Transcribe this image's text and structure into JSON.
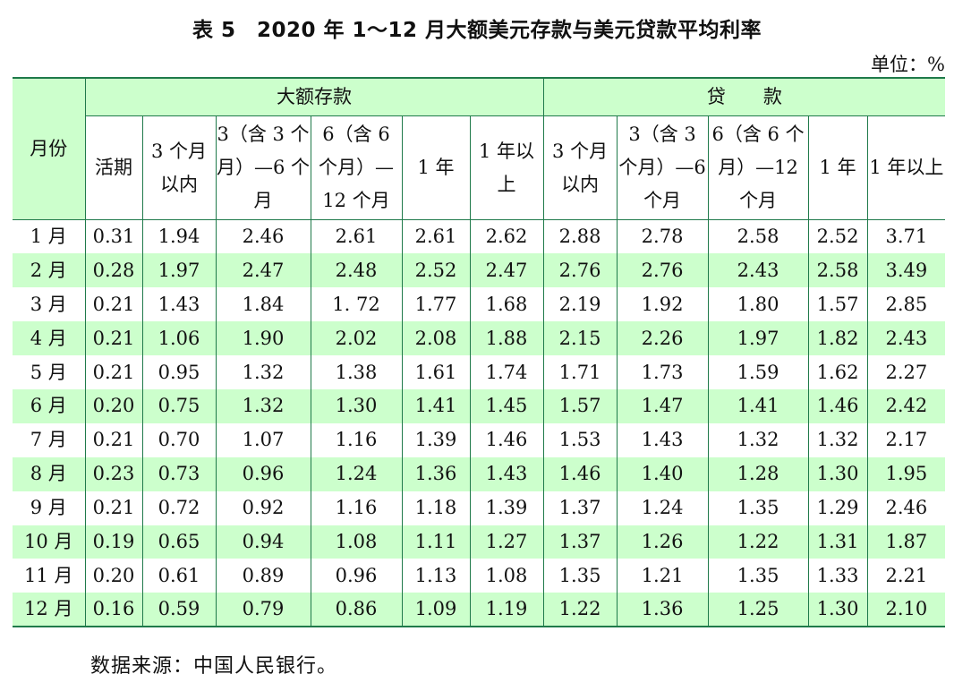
{
  "title": "表 5　2020 年 1～12 月大额美元存款与美元贷款平均利率",
  "unit": "单位：%",
  "header": {
    "month": "月份",
    "deposit_group": "大额存款",
    "loan_group": "贷　　款",
    "deposit_cols": [
      "活期",
      "3 个月以内",
      "3（含 3 个月）—6 个月",
      "6（含 6 个月）—12 个月",
      "1 年",
      "1 年以上"
    ],
    "loan_cols": [
      "3 个月以内",
      "3（含 3 个月）—6 个月",
      "6（含 6 个月）—12 个月",
      "1 年",
      "1 年以上"
    ]
  },
  "rows": [
    {
      "month": "1 月",
      "cells": [
        "0.31",
        "1.94",
        "2.46",
        "2.61",
        "2.61",
        "2.62",
        "2.88",
        "2.78",
        "2.58",
        "2.52",
        "3.71"
      ]
    },
    {
      "month": "2 月",
      "cells": [
        "0.28",
        "1.97",
        "2.47",
        "2.48",
        "2.52",
        "2.47",
        "2.76",
        "2.76",
        "2.43",
        "2.58",
        "3.49"
      ]
    },
    {
      "month": "3 月",
      "cells": [
        "0.21",
        "1.43",
        "1.84",
        "1. 72",
        "1.77",
        "1.68",
        "2.19",
        "1.92",
        "1.80",
        "1.57",
        "2.85"
      ]
    },
    {
      "month": "4 月",
      "cells": [
        "0.21",
        "1.06",
        "1.90",
        "2.02",
        "2.08",
        "1.88",
        "2.15",
        "2.26",
        "1.97",
        "1.82",
        "2.43"
      ]
    },
    {
      "month": "5 月",
      "cells": [
        "0.21",
        "0.95",
        "1.32",
        "1.38",
        "1.61",
        "1.74",
        "1.71",
        "1.73",
        "1.59",
        "1.62",
        "2.27"
      ]
    },
    {
      "month": "6 月",
      "cells": [
        "0.20",
        "0.75",
        "1.32",
        "1.30",
        "1.41",
        "1.45",
        "1.57",
        "1.47",
        "1.41",
        "1.46",
        "2.42"
      ]
    },
    {
      "month": "7 月",
      "cells": [
        "0.21",
        "0.70",
        "1.07",
        "1.16",
        "1.39",
        "1.46",
        "1.53",
        "1.43",
        "1.32",
        "1.32",
        "2.17"
      ]
    },
    {
      "month": "8 月",
      "cells": [
        "0.23",
        "0.73",
        "0.96",
        "1.24",
        "1.36",
        "1.43",
        "1.46",
        "1.40",
        "1.28",
        "1.30",
        "1.95"
      ]
    },
    {
      "month": "9 月",
      "cells": [
        "0.21",
        "0.72",
        "0.92",
        "1.16",
        "1.18",
        "1.39",
        "1.37",
        "1.24",
        "1.35",
        "1.29",
        "2.46"
      ]
    },
    {
      "month": "10 月",
      "cells": [
        "0.19",
        "0.65",
        "0.94",
        "1.08",
        "1.11",
        "1.27",
        "1.37",
        "1.26",
        "1.22",
        "1.31",
        "1.87"
      ]
    },
    {
      "month": "11 月",
      "cells": [
        "0.20",
        "0.61",
        "0.89",
        "0.96",
        "1.13",
        "1.08",
        "1.35",
        "1.21",
        "1.35",
        "1.33",
        "2.21"
      ]
    },
    {
      "month": "12 月",
      "cells": [
        "0.16",
        "0.59",
        "0.79",
        "0.86",
        "1.09",
        "1.19",
        "1.22",
        "1.36",
        "1.25",
        "1.30",
        "2.10"
      ]
    }
  ],
  "source": "数据来源：中国人民银行。",
  "colors": {
    "rule": "#1f7a4a",
    "band": "#ccffcc"
  }
}
